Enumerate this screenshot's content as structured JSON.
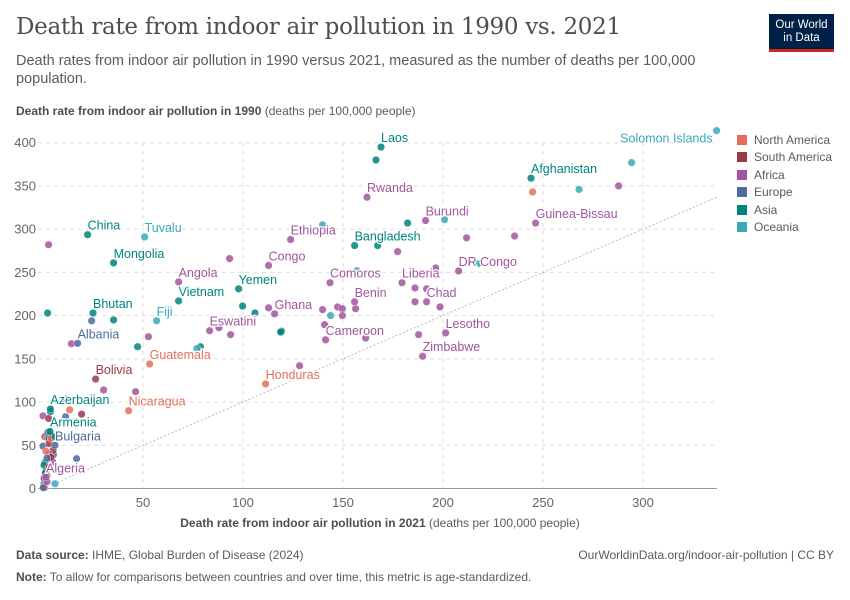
{
  "header": {
    "title": "Death rate from indoor air pollution in 1990 vs. 2021",
    "subtitle": "Death rates from indoor air pollution in 1990 versus 2021, measured as the number of deaths per 100,000 population.",
    "logo_line1": "Our World",
    "logo_line2": "in Data"
  },
  "footer": {
    "source_label": "Data source:",
    "source_text": "IHME, Global Burden of Disease (2024)",
    "url_text": "OurWorldinData.org/indoor-air-pollution | CC BY",
    "note_label": "Note:",
    "note_text": "To allow for comparisons between countries and over time, this metric is age-standardized."
  },
  "chart_data": {
    "type": "scatter",
    "title": "Death rate from indoor air pollution in 1990 vs. 2021",
    "xlabel_bold": "Death rate from indoor air pollution in 2021",
    "xlabel_unit": "(deaths per 100,000 people)",
    "ylabel_bold": "Death rate from indoor air pollution in 1990",
    "ylabel_unit": "(deaths per 100,000 people)",
    "xlim": [
      0,
      337
    ],
    "ylim": [
      0,
      415
    ],
    "x_ticks": [
      "0",
      "50",
      "100",
      "150",
      "200",
      "250",
      "300"
    ],
    "y_ticks": [
      "0",
      "50",
      "100",
      "150",
      "200",
      "250",
      "300",
      "350",
      "400"
    ],
    "grid": true,
    "reference_line": "y = x (dotted)",
    "legend_position": "right",
    "legend": [
      {
        "name": "North America",
        "color": "#e56e5a"
      },
      {
        "name": "South America",
        "color": "#9a3a46"
      },
      {
        "name": "Africa",
        "color": "#a2559c"
      },
      {
        "name": "Europe",
        "color": "#4c6a9c"
      },
      {
        "name": "Asia",
        "color": "#00847e"
      },
      {
        "name": "Oceania",
        "color": "#38aaba"
      }
    ],
    "points": [
      {
        "label": "Laos",
        "x": 169,
        "y": 395,
        "region": "Asia"
      },
      {
        "label": "Solomon Islands",
        "x": 336.8,
        "y": 414,
        "region": "Oceania"
      },
      {
        "label": "Afghanistan",
        "x": 244,
        "y": 359,
        "region": "Asia"
      },
      {
        "label": "Rwanda",
        "x": 162,
        "y": 337,
        "region": "Africa"
      },
      {
        "label": "Burundi",
        "x": 191.3,
        "y": 310,
        "region": "Africa"
      },
      {
        "label": "Guinea-Bissau",
        "x": 246.3,
        "y": 307,
        "region": "Africa"
      },
      {
        "label": "China",
        "x": 22.3,
        "y": 293.6,
        "region": "Asia"
      },
      {
        "label": "Tuvalu",
        "x": 50.8,
        "y": 291,
        "region": "Oceania"
      },
      {
        "label": "Ethiopia",
        "x": 123.8,
        "y": 288,
        "region": "Africa"
      },
      {
        "label": "Bangladesh",
        "x": 155.8,
        "y": 281,
        "region": "Asia"
      },
      {
        "label": "Mongolia",
        "x": 35.3,
        "y": 261,
        "region": "Asia"
      },
      {
        "label": "Congo",
        "x": 112.8,
        "y": 258,
        "region": "Africa"
      },
      {
        "label": "DR Congo",
        "x": 207.8,
        "y": 251.6,
        "region": "Africa"
      },
      {
        "label": "Angola",
        "x": 67.8,
        "y": 239,
        "region": "Africa"
      },
      {
        "label": "Comoros",
        "x": 143.5,
        "y": 238,
        "region": "Africa"
      },
      {
        "label": "Liberia",
        "x": 179.5,
        "y": 238,
        "region": "Africa"
      },
      {
        "label": "Yemen",
        "x": 97.8,
        "y": 231,
        "region": "Asia"
      },
      {
        "label": "Vietnam",
        "x": 67.8,
        "y": 217,
        "region": "Asia"
      },
      {
        "label": "Benin",
        "x": 155.8,
        "y": 216,
        "region": "Africa"
      },
      {
        "label": "Chad",
        "x": 191.8,
        "y": 216,
        "region": "Africa"
      },
      {
        "label": "Ghana",
        "x": 115.8,
        "y": 202,
        "region": "Africa"
      },
      {
        "label": "Bhutan",
        "x": 25,
        "y": 203,
        "region": "Asia"
      },
      {
        "label": "Fiji",
        "x": 56.8,
        "y": 194,
        "region": "Oceania"
      },
      {
        "label": "Eswatini",
        "x": 83.3,
        "y": 182.5,
        "region": "Africa"
      },
      {
        "label": "Lesotho",
        "x": 201.3,
        "y": 180,
        "region": "Africa"
      },
      {
        "label": "Cameroon",
        "x": 141.3,
        "y": 172,
        "region": "Africa"
      },
      {
        "label": "Albania",
        "x": 17.3,
        "y": 168,
        "region": "Europe"
      },
      {
        "label": "Zimbabwe",
        "x": 189.8,
        "y": 153,
        "region": "Africa"
      },
      {
        "label": "Guatemala",
        "x": 53.3,
        "y": 144,
        "region": "North America"
      },
      {
        "label": "Bolivia",
        "x": 26.3,
        "y": 126.6,
        "region": "South America"
      },
      {
        "label": "Honduras",
        "x": 111.3,
        "y": 121,
        "region": "North America"
      },
      {
        "label": "Nicaragua",
        "x": 42.8,
        "y": 90,
        "region": "North America"
      },
      {
        "label": "Azerbaijan",
        "x": 3.7,
        "y": 92,
        "region": "Asia"
      },
      {
        "label": "Armenia",
        "x": 3.5,
        "y": 66,
        "region": "Asia"
      },
      {
        "label": "Bulgaria",
        "x": 6,
        "y": 50,
        "region": "Europe"
      },
      {
        "label": "Algeria",
        "x": 1.5,
        "y": 13,
        "region": "Africa"
      },
      {
        "x": 166.5,
        "y": 380,
        "region": "Asia"
      },
      {
        "x": 244.8,
        "y": 343,
        "region": "North America"
      },
      {
        "x": 268,
        "y": 346,
        "region": "Oceania"
      },
      {
        "x": 294.3,
        "y": 377,
        "region": "Oceania"
      },
      {
        "x": 287.8,
        "y": 350,
        "region": "Africa"
      },
      {
        "x": 182.3,
        "y": 307,
        "region": "Asia"
      },
      {
        "x": 200.8,
        "y": 311,
        "region": "Oceania"
      },
      {
        "x": 139.8,
        "y": 305,
        "region": "Oceania"
      },
      {
        "x": 167.3,
        "y": 281,
        "region": "Asia"
      },
      {
        "x": 177.3,
        "y": 274,
        "region": "Africa"
      },
      {
        "x": 211.8,
        "y": 290,
        "region": "Africa"
      },
      {
        "x": 235.8,
        "y": 292,
        "region": "Africa"
      },
      {
        "x": 196.3,
        "y": 255,
        "region": "Africa"
      },
      {
        "x": 217.5,
        "y": 260,
        "region": "Oceania"
      },
      {
        "x": 157,
        "y": 252,
        "region": "Oceania"
      },
      {
        "x": 186,
        "y": 232,
        "region": "Africa"
      },
      {
        "x": 191.8,
        "y": 231,
        "region": "Africa"
      },
      {
        "x": 186,
        "y": 216,
        "region": "Africa"
      },
      {
        "x": 198.5,
        "y": 210,
        "region": "Africa"
      },
      {
        "x": 156.3,
        "y": 208,
        "region": "Africa"
      },
      {
        "x": 147.3,
        "y": 210,
        "region": "Africa"
      },
      {
        "x": 149.7,
        "y": 208,
        "region": "Africa"
      },
      {
        "x": 149.7,
        "y": 200,
        "region": "Africa"
      },
      {
        "x": 143.8,
        "y": 200,
        "region": "Oceania"
      },
      {
        "x": 139.8,
        "y": 207,
        "region": "Africa"
      },
      {
        "x": 140.8,
        "y": 189.5,
        "region": "Africa"
      },
      {
        "x": 161.3,
        "y": 174,
        "region": "Africa"
      },
      {
        "x": 187.8,
        "y": 178,
        "region": "Africa"
      },
      {
        "x": 128.3,
        "y": 142,
        "region": "Africa"
      },
      {
        "x": 119.3,
        "y": 182,
        "region": "Asia"
      },
      {
        "x": 2.8,
        "y": 282,
        "region": "Africa"
      },
      {
        "x": 93.3,
        "y": 266,
        "region": "Africa"
      },
      {
        "x": 99.8,
        "y": 211,
        "region": "Asia"
      },
      {
        "x": 106,
        "y": 203,
        "region": "Asia"
      },
      {
        "x": 112.8,
        "y": 209,
        "region": "Africa"
      },
      {
        "x": 2.3,
        "y": 203,
        "region": "Asia"
      },
      {
        "x": 24.3,
        "y": 194,
        "region": "Europe"
      },
      {
        "x": 35.3,
        "y": 195,
        "region": "Asia"
      },
      {
        "x": 14.2,
        "y": 167.5,
        "region": "Africa"
      },
      {
        "x": 52.7,
        "y": 175.6,
        "region": "Africa"
      },
      {
        "x": 47.3,
        "y": 164,
        "region": "Asia"
      },
      {
        "x": 78.7,
        "y": 164,
        "region": "Asia"
      },
      {
        "x": 77,
        "y": 162,
        "region": "Oceania"
      },
      {
        "x": 30.3,
        "y": 114,
        "region": "Africa"
      },
      {
        "x": 46.3,
        "y": 112,
        "region": "Africa"
      },
      {
        "x": 93.8,
        "y": 178,
        "region": "Africa"
      },
      {
        "x": 118.8,
        "y": 181,
        "region": "Asia"
      },
      {
        "x": 88,
        "y": 186,
        "region": "Africa"
      },
      {
        "x": 3.7,
        "y": 89,
        "region": "Asia"
      },
      {
        "x": 0,
        "y": 84,
        "region": "Africa"
      },
      {
        "x": 2.8,
        "y": 81,
        "region": "South America"
      },
      {
        "x": 11.3,
        "y": 83,
        "region": "Europe"
      },
      {
        "x": 19.3,
        "y": 86,
        "region": "South America"
      },
      {
        "x": 16.3,
        "y": 77,
        "region": "Europe"
      },
      {
        "x": 13.3,
        "y": 91,
        "region": "North America"
      },
      {
        "x": 11.3,
        "y": 103.5,
        "region": "South America"
      },
      {
        "x": 16.8,
        "y": 34.5,
        "region": "Europe"
      },
      {
        "x": 5.2,
        "y": 39,
        "region": "Europe"
      },
      {
        "x": 4.8,
        "y": 31,
        "region": "Africa"
      },
      {
        "x": 6,
        "y": 5.5,
        "region": "Oceania"
      },
      {
        "x": 1,
        "y": 60,
        "region": "South America"
      },
      {
        "x": 2,
        "y": 59,
        "region": "North America"
      },
      {
        "x": 4,
        "y": 61,
        "region": "South America"
      },
      {
        "x": 2.5,
        "y": 65,
        "region": "Europe"
      },
      {
        "x": 3,
        "y": 58,
        "region": "Asia"
      },
      {
        "x": 5,
        "y": 44,
        "region": "South America"
      },
      {
        "x": 3,
        "y": 40,
        "region": "Africa"
      },
      {
        "x": 4,
        "y": 36,
        "region": "South America"
      },
      {
        "x": 1,
        "y": 30,
        "region": "Asia"
      },
      {
        "x": 0.5,
        "y": 27,
        "region": "Asia"
      },
      {
        "x": 1.5,
        "y": 20,
        "region": "South America"
      },
      {
        "x": 2,
        "y": 15,
        "region": "North America"
      },
      {
        "x": 1,
        "y": 10,
        "region": "Europe"
      },
      {
        "x": 0.5,
        "y": 5,
        "region": "Asia"
      },
      {
        "x": 0.3,
        "y": 2,
        "region": "South America"
      },
      {
        "x": 0.8,
        "y": 1,
        "region": "North America"
      },
      {
        "x": 0.2,
        "y": 1,
        "region": "Europe"
      },
      {
        "x": 0.5,
        "y": 12,
        "region": "Africa"
      },
      {
        "x": 1.2,
        "y": 18,
        "region": "Asia"
      },
      {
        "x": 0,
        "y": 49,
        "region": "Europe"
      },
      {
        "x": 3,
        "y": 52,
        "region": "South America"
      },
      {
        "x": 1.5,
        "y": 43,
        "region": "North America"
      },
      {
        "x": 2,
        "y": 35,
        "region": "Europe"
      },
      {
        "x": 3,
        "y": 25,
        "region": "South America"
      },
      {
        "x": 2,
        "y": 8,
        "region": "Africa"
      },
      {
        "x": 4,
        "y": 58,
        "region": "North America"
      },
      {
        "x": 6,
        "y": 60,
        "region": "Asia"
      }
    ]
  }
}
